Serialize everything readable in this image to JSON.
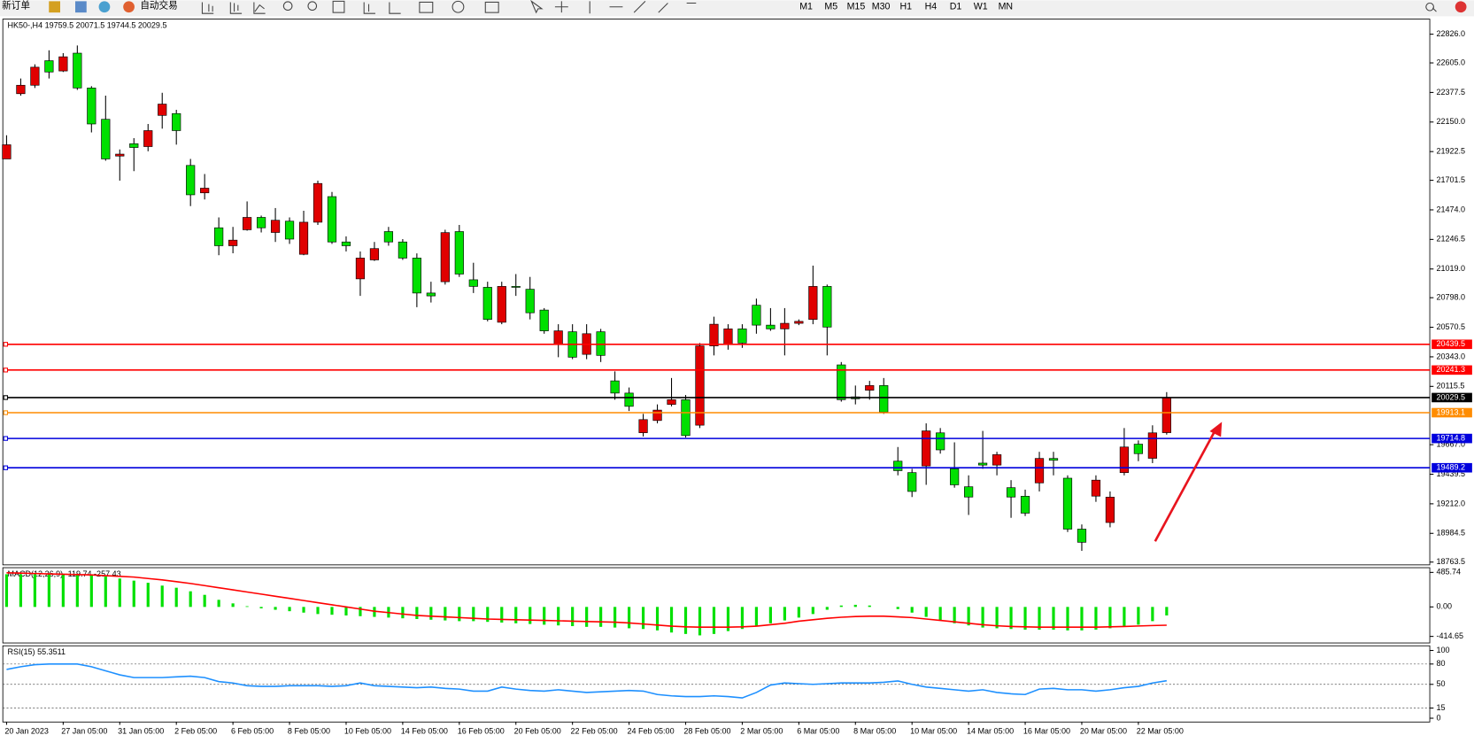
{
  "toolbar": {
    "new_order": "新订单",
    "auto_trading": "自动交易",
    "timeframes": [
      "M1",
      "M5",
      "M15",
      "M30",
      "H1",
      "H4",
      "D1",
      "W1",
      "MN"
    ]
  },
  "chart_data": [
    {
      "type": "candlestick",
      "title": "HK50-,H4  19759.5 20071.5 19744.5 20029.5",
      "up_color": "#e00000",
      "down_color": "#00e000",
      "categories": [
        "20 Jan 2023",
        null,
        null,
        null,
        "27 Jan 05:00",
        null,
        null,
        null,
        "31 Jan 05:00",
        null,
        null,
        null,
        "2 Feb 05:00",
        null,
        null,
        null,
        "6 Feb 05:00",
        null,
        null,
        null,
        "8 Feb 05:00",
        null,
        null,
        null,
        "10 Feb 05:00",
        null,
        null,
        null,
        "14 Feb 05:00",
        null,
        null,
        null,
        "16 Feb 05:00",
        null,
        null,
        null,
        "20 Feb 05:00",
        null,
        null,
        null,
        "22 Feb 05:00",
        null,
        null,
        null,
        "24 Feb 05:00",
        null,
        null,
        null,
        "28 Feb 05:00",
        null,
        null,
        null,
        "2 Mar 05:00",
        null,
        null,
        null,
        "6 Mar 05:00",
        null,
        null,
        null,
        "8 Mar 05:00",
        null,
        null,
        null,
        "10 Mar 05:00",
        null,
        null,
        null,
        "14 Mar 05:00",
        null,
        null,
        null,
        "16 Mar 05:00",
        null,
        null,
        null,
        "20 Mar 05:00",
        null,
        null,
        null,
        "22 Mar 05:00",
        null,
        null
      ],
      "open": [
        21866,
        22368,
        22433,
        22622,
        22543,
        22680,
        22412,
        22171,
        21888,
        21983,
        21961,
        22201,
        22215,
        21816,
        21605,
        21336,
        21198,
        21321,
        21416,
        21300,
        21387,
        21132,
        21379,
        21576,
        21227,
        20943,
        21089,
        21307,
        21227,
        21103,
        20834,
        20921,
        21307,
        20936,
        20878,
        20609,
        20885,
        20863,
        20703,
        20441,
        20536,
        20362,
        20536,
        20158,
        20064,
        19759,
        19853,
        19977,
        20013,
        19817,
        20427,
        20441,
        20558,
        20740,
        20587,
        20558,
        20601,
        20631,
        20885,
        20281,
        20035,
        20086,
        20122,
        19540,
        19452,
        19503,
        19758,
        19481,
        19343,
        19525,
        19510,
        19336,
        19270,
        19373,
        19561,
        19409,
        19017,
        19271,
        19068,
        19452,
        19671,
        19562,
        19759.5
      ],
      "high": [
        22048,
        22485,
        22594,
        22702,
        22680,
        22739,
        22426,
        22353,
        21939,
        22026,
        22135,
        22375,
        22244,
        21866,
        21750,
        21416,
        21343,
        21539,
        21430,
        21488,
        21416,
        21467,
        21699,
        21612,
        21270,
        21154,
        21227,
        21343,
        21249,
        21139,
        20921,
        21321,
        21358,
        21067,
        20921,
        20921,
        20980,
        20958,
        20718,
        20594,
        20594,
        20594,
        20558,
        20231,
        20107,
        19904,
        19977,
        20180,
        20049,
        20449,
        20652,
        20594,
        20594,
        20791,
        20718,
        20718,
        20631,
        21045,
        20899,
        20303,
        20122,
        20158,
        20180,
        19649,
        19481,
        19831,
        19795,
        19685,
        19431,
        19773,
        19612,
        19394,
        19321,
        19612,
        19612,
        19431,
        19053,
        19431,
        19307,
        19795,
        19700,
        19816,
        20071.5
      ],
      "low": [
        21866,
        22353,
        22412,
        22485,
        22535,
        22397,
        22070,
        21852,
        21699,
        21772,
        21925,
        22099,
        21976,
        21503,
        21554,
        21125,
        21140,
        21314,
        21300,
        21227,
        21212,
        21125,
        21358,
        21212,
        21154,
        20812,
        21081,
        21198,
        21089,
        20725,
        20761,
        20899,
        20958,
        20834,
        20616,
        20594,
        20812,
        20631,
        20521,
        20340,
        20325,
        20325,
        20303,
        20013,
        19926,
        19730,
        19831,
        19962,
        19722,
        19795,
        20354,
        20398,
        20412,
        20521,
        20543,
        20354,
        20587,
        20594,
        20354,
        19998,
        19977,
        20013,
        19904,
        19431,
        19264,
        19358,
        19598,
        19336,
        19126,
        19481,
        19431,
        19104,
        19118,
        19307,
        19431,
        18995,
        18850,
        19227,
        19031,
        19431,
        19540,
        19525,
        19744.5
      ],
      "close": [
        21975,
        22433,
        22572,
        22535,
        22652,
        22412,
        22135,
        21866,
        21903,
        21954,
        22084,
        22288,
        22084,
        21590,
        21641,
        21198,
        21241,
        21416,
        21336,
        21394,
        21249,
        21379,
        21677,
        21227,
        21198,
        21103,
        21176,
        21227,
        21103,
        20834,
        20812,
        21299,
        20980,
        20885,
        20631,
        20885,
        20878,
        20682,
        20543,
        20543,
        20340,
        20521,
        20354,
        20064,
        19962,
        19860,
        19933,
        20013,
        19737,
        20427,
        20594,
        20558,
        20449,
        20587,
        20558,
        20601,
        20616,
        20885,
        20572,
        20013,
        20020,
        20122,
        19918,
        19467,
        19307,
        19773,
        19627,
        19358,
        19264,
        19510,
        19590,
        19264,
        19140,
        19561,
        19547,
        19017,
        18916,
        19394,
        19263,
        19649,
        19598,
        19758,
        20029.5
      ],
      "ylim": [
        18742,
        22942
      ],
      "yticks": [
        {
          "value": 22826,
          "label": "22826.0"
        },
        {
          "value": 22605,
          "label": "22605.0"
        },
        22377.5,
        {
          "value": 22150,
          "label": "22150.0"
        },
        21922.5,
        21701.5,
        {
          "value": 21474,
          "label": "21474.0"
        },
        21246.5,
        {
          "value": 21019,
          "label": "21019.0"
        },
        {
          "value": 20798,
          "label": "20798.0"
        },
        20570.5,
        {
          "value": 20343,
          "label": "20343.0"
        },
        20115.5,
        {
          "value": 19667,
          "label": "19667.0"
        },
        19439.5,
        {
          "value": 19212,
          "label": "19212.0"
        },
        18984.5,
        18763.5
      ],
      "levels": [
        {
          "value": 20439.5,
          "color": "#ff0000"
        },
        {
          "value": 20241.3,
          "color": "#ff0000"
        },
        {
          "value": 20029.5,
          "color": "#000000"
        },
        {
          "value": 19913.1,
          "color": "#ff8c00"
        },
        {
          "value": 19714.8,
          "color": "#0000dd"
        },
        {
          "value": 19489.2,
          "color": "#0000dd"
        }
      ]
    },
    {
      "type": "macd",
      "title": "MACD(12,26,9) -119.74 -257.43",
      "color": "#00e000",
      "signal_color": "#ff0000",
      "values": [
        460,
        460,
        460,
        460,
        460,
        460,
        450,
        430,
        400,
        370,
        340,
        300,
        270,
        220,
        170,
        100,
        50,
        10,
        -20,
        -40,
        -60,
        -80,
        -100,
        -110,
        -120,
        -130,
        -140,
        -150,
        -160,
        -170,
        -180,
        -190,
        -200,
        -200,
        -210,
        -220,
        -230,
        -240,
        -250,
        -260,
        -270,
        -280,
        -280,
        -290,
        -300,
        -310,
        -330,
        -360,
        -380,
        -400,
        -380,
        -340,
        -310,
        -270,
        -230,
        -190,
        -150,
        -100,
        -40,
        20,
        30,
        20,
        0,
        -30,
        -80,
        -140,
        -190,
        -230,
        -260,
        -290,
        -300,
        -310,
        -320,
        -320,
        -320,
        -330,
        -330,
        -320,
        -300,
        -280,
        -250,
        -200,
        -119.74
      ],
      "signal": [
        480,
        475,
        470,
        465,
        460,
        455,
        450,
        440,
        430,
        420,
        400,
        380,
        355,
        330,
        300,
        270,
        240,
        210,
        180,
        150,
        120,
        90,
        60,
        30,
        0,
        -30,
        -60,
        -80,
        -100,
        -120,
        -130,
        -140,
        -150,
        -160,
        -170,
        -175,
        -180,
        -185,
        -190,
        -195,
        -200,
        -205,
        -210,
        -215,
        -225,
        -240,
        -255,
        -270,
        -280,
        -285,
        -285,
        -285,
        -280,
        -270,
        -250,
        -230,
        -200,
        -180,
        -160,
        -145,
        -135,
        -130,
        -130,
        -140,
        -150,
        -170,
        -190,
        -210,
        -230,
        -250,
        -265,
        -275,
        -280,
        -285,
        -285,
        -285,
        -285,
        -285,
        -280,
        -275,
        -268,
        -262,
        -257.43
      ],
      "ylim": [
        -507,
        552
      ],
      "yticks": [
        485.74,
        {
          "value": 0,
          "label": "0.00"
        },
        -414.65
      ]
    },
    {
      "type": "rsi",
      "title": "RSI(15) 55.3511",
      "color": "#1e90ff",
      "values": [
        72,
        76,
        79,
        80,
        80,
        80,
        76,
        70,
        64,
        60,
        60,
        60,
        61,
        62,
        60,
        54,
        52,
        48,
        47,
        47,
        48,
        48,
        48,
        47,
        48,
        52,
        48,
        47,
        46,
        45,
        46,
        44,
        43,
        40,
        40,
        46,
        43,
        41,
        40,
        42,
        40,
        38,
        39,
        40,
        41,
        40,
        35,
        33,
        32,
        32,
        33,
        32,
        30,
        38,
        49,
        52,
        51,
        50,
        51,
        52,
        52,
        52,
        53,
        55,
        50,
        46,
        44,
        42,
        40,
        42,
        38,
        36,
        35,
        43,
        44,
        42,
        42,
        40,
        42,
        45,
        47,
        52,
        55.3511
      ],
      "ylim": [
        -5.6,
        106.9
      ],
      "yticks": [
        100,
        80,
        50,
        15,
        0
      ],
      "levels": [
        80,
        50,
        15
      ]
    }
  ]
}
